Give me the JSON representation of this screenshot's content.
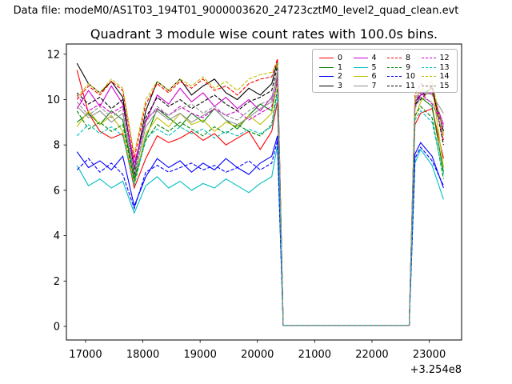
{
  "header": {
    "data_file_label": "Data file: modeM0/AS1T03_194T01_9000003620_24723cztM0_level2_quad_clean.evt"
  },
  "chart_data": {
    "type": "line",
    "title": "Quadrant 3 module wise count rates with 100.0s bins.",
    "xlabel": "",
    "ylabel": "",
    "x_offset_text": "+3.254e8",
    "xlim": [
      16665,
      23565
    ],
    "ylim": [
      -0.6,
      12.45
    ],
    "xticks": [
      17000,
      18000,
      19000,
      20000,
      21000,
      22000,
      23000
    ],
    "yticks": [
      0,
      2,
      4,
      6,
      8,
      10,
      12
    ],
    "grid": false,
    "legend_position": "upper right",
    "legend_columns": 4,
    "x": [
      16850,
      17050,
      17250,
      17450,
      17650,
      17850,
      18050,
      18250,
      18450,
      18650,
      18850,
      19050,
      19250,
      19450,
      19650,
      19850,
      20050,
      20250,
      20350,
      20450,
      20650,
      20850,
      21050,
      21250,
      21450,
      21650,
      21850,
      22050,
      22250,
      22450,
      22650,
      22750,
      22850,
      23050,
      23250
    ],
    "series": [
      {
        "name": "0",
        "color": "#ff0000",
        "style": "solid",
        "values": [
          11.3,
          9.4,
          8.6,
          8.3,
          8.5,
          6.1,
          7.4,
          8.4,
          8.1,
          8.3,
          8.6,
          8.2,
          8.5,
          8.0,
          8.3,
          8.6,
          7.8,
          8.6,
          9.9,
          0.05,
          0.05,
          0.05,
          0.05,
          0.05,
          0.05,
          0.05,
          0.05,
          0.05,
          0.05,
          0.05,
          0.05,
          8.9,
          9.4,
          9.6,
          7.4
        ]
      },
      {
        "name": "1",
        "color": "#008000",
        "style": "solid",
        "values": [
          9.0,
          9.4,
          8.9,
          9.5,
          9.1,
          6.5,
          8.3,
          9.6,
          9.2,
          8.8,
          9.4,
          9.0,
          9.6,
          9.1,
          8.7,
          9.3,
          9.8,
          9.5,
          10.9,
          0.05,
          0.05,
          0.05,
          0.05,
          0.05,
          0.05,
          0.05,
          0.05,
          0.05,
          0.05,
          0.05,
          0.05,
          9.8,
          10.1,
          9.7,
          6.8
        ]
      },
      {
        "name": "2",
        "color": "#0000ff",
        "style": "solid",
        "values": [
          7.7,
          7.0,
          7.3,
          6.9,
          7.5,
          5.3,
          6.6,
          7.4,
          7.0,
          7.3,
          6.8,
          7.2,
          6.9,
          7.4,
          7.0,
          6.7,
          7.2,
          7.5,
          8.4,
          0.05,
          0.05,
          0.05,
          0.05,
          0.05,
          0.05,
          0.05,
          0.05,
          0.05,
          0.05,
          0.05,
          0.05,
          7.6,
          8.1,
          7.5,
          6.1
        ]
      },
      {
        "name": "3",
        "color": "#000000",
        "style": "solid",
        "values": [
          11.6,
          10.7,
          10.3,
          10.8,
          10.1,
          6.9,
          9.5,
          10.8,
          10.4,
          10.9,
          10.2,
          10.6,
          10.9,
          10.3,
          10.0,
          10.5,
          10.2,
          10.7,
          11.7,
          0.05,
          0.05,
          0.05,
          0.05,
          0.05,
          0.05,
          0.05,
          0.05,
          0.05,
          0.05,
          0.05,
          0.05,
          9.9,
          10.2,
          10.5,
          8.6
        ]
      },
      {
        "name": "4",
        "color": "#cc00cc",
        "style": "solid",
        "values": [
          9.6,
          10.4,
          9.7,
          10.6,
          9.8,
          7.2,
          9.0,
          10.2,
          9.8,
          10.5,
          9.9,
          10.3,
          9.7,
          10.1,
          9.6,
          10.0,
          9.5,
          10.1,
          11.0,
          0.05,
          0.05,
          0.05,
          0.05,
          0.05,
          0.05,
          0.05,
          0.05,
          0.05,
          0.05,
          0.05,
          0.05,
          9.7,
          10.2,
          10.3,
          8.9
        ]
      },
      {
        "name": "5",
        "color": "#00bfbf",
        "style": "solid",
        "values": [
          7.1,
          6.2,
          6.5,
          6.1,
          6.4,
          5.0,
          6.2,
          6.6,
          6.1,
          6.4,
          6.0,
          6.3,
          6.1,
          6.5,
          6.2,
          5.9,
          6.3,
          6.6,
          8.0,
          0.05,
          0.05,
          0.05,
          0.05,
          0.05,
          0.05,
          0.05,
          0.05,
          0.05,
          0.05,
          0.05,
          0.05,
          7.2,
          7.8,
          7.1,
          5.6
        ]
      },
      {
        "name": "6",
        "color": "#bfbf00",
        "style": "solid",
        "values": [
          8.8,
          9.5,
          8.9,
          9.3,
          8.6,
          6.3,
          8.5,
          9.2,
          8.8,
          9.4,
          8.9,
          9.1,
          8.6,
          9.0,
          8.8,
          9.3,
          8.9,
          9.4,
          10.8,
          0.05,
          0.05,
          0.05,
          0.05,
          0.05,
          0.05,
          0.05,
          0.05,
          0.05,
          0.05,
          0.05,
          0.05,
          9.2,
          9.9,
          10.6,
          7.0
        ]
      },
      {
        "name": "7",
        "color": "#909090",
        "style": "solid",
        "values": [
          9.7,
          9.2,
          9.5,
          9.0,
          9.4,
          6.6,
          8.8,
          9.5,
          9.1,
          9.4,
          9.0,
          9.3,
          9.6,
          9.1,
          8.9,
          9.2,
          9.6,
          9.9,
          11.2,
          0.05,
          0.05,
          0.05,
          0.05,
          0.05,
          0.05,
          0.05,
          0.05,
          0.05,
          0.05,
          0.05,
          0.05,
          10.0,
          10.4,
          10.2,
          9.4
        ]
      },
      {
        "name": "8",
        "color": "#ff0000",
        "style": "dashed",
        "values": [
          10.0,
          10.6,
          10.2,
          10.8,
          10.4,
          7.4,
          9.8,
          10.7,
          10.3,
          10.8,
          10.5,
          10.9,
          10.4,
          10.6,
          10.2,
          10.7,
          10.9,
          11.0,
          11.8,
          0.05,
          0.05,
          0.05,
          0.05,
          0.05,
          0.05,
          0.05,
          0.05,
          0.05,
          0.05,
          0.05,
          0.05,
          10.2,
          10.7,
          10.5,
          8.2
        ]
      },
      {
        "name": "9",
        "color": "#008000",
        "style": "dashed",
        "values": [
          9.5,
          8.7,
          9.0,
          8.6,
          8.9,
          6.4,
          8.2,
          8.9,
          8.6,
          9.0,
          8.7,
          8.4,
          8.8,
          8.5,
          8.9,
          8.6,
          8.4,
          8.9,
          10.5,
          0.05,
          0.05,
          0.05,
          0.05,
          0.05,
          0.05,
          0.05,
          0.05,
          0.05,
          0.05,
          0.05,
          0.05,
          9.3,
          9.7,
          9.2,
          6.5
        ]
      },
      {
        "name": "10",
        "color": "#0000ff",
        "style": "dashed",
        "values": [
          6.9,
          7.4,
          6.8,
          7.2,
          6.7,
          5.2,
          6.8,
          7.1,
          6.8,
          7.0,
          7.2,
          6.9,
          7.1,
          6.8,
          7.0,
          7.3,
          6.9,
          7.2,
          8.2,
          0.05,
          0.05,
          0.05,
          0.05,
          0.05,
          0.05,
          0.05,
          0.05,
          0.05,
          0.05,
          0.05,
          0.05,
          7.4,
          7.9,
          7.3,
          6.2
        ]
      },
      {
        "name": "11",
        "color": "#000000",
        "style": "dashed",
        "values": [
          10.3,
          9.8,
          10.1,
          9.6,
          10.0,
          6.7,
          9.2,
          10.1,
          9.7,
          10.0,
          9.6,
          9.9,
          10.2,
          9.8,
          9.5,
          9.9,
          10.1,
          10.4,
          11.5,
          0.05,
          0.05,
          0.05,
          0.05,
          0.05,
          0.05,
          0.05,
          0.05,
          0.05,
          0.05,
          0.05,
          0.05,
          9.8,
          10.0,
          10.6,
          8.0
        ]
      },
      {
        "name": "12",
        "color": "#cc00cc",
        "style": "dashed",
        "values": [
          10.2,
          9.5,
          9.8,
          9.4,
          9.7,
          7.0,
          9.1,
          9.6,
          9.3,
          9.7,
          9.4,
          9.2,
          9.6,
          9.3,
          9.5,
          9.1,
          9.4,
          9.7,
          10.8,
          0.05,
          0.05,
          0.05,
          0.05,
          0.05,
          0.05,
          0.05,
          0.05,
          0.05,
          0.05,
          0.05,
          0.05,
          9.9,
          10.3,
          9.8,
          8.8
        ]
      },
      {
        "name": "13",
        "color": "#00bfbf",
        "style": "dashed",
        "values": [
          8.4,
          8.9,
          8.5,
          8.8,
          8.4,
          6.2,
          8.3,
          8.7,
          8.4,
          8.8,
          8.5,
          8.7,
          8.3,
          8.6,
          8.4,
          8.7,
          8.5,
          8.8,
          10.2,
          0.05,
          0.05,
          0.05,
          0.05,
          0.05,
          0.05,
          0.05,
          0.05,
          0.05,
          0.05,
          0.05,
          0.05,
          9.1,
          9.5,
          9.0,
          6.7
        ]
      },
      {
        "name": "14",
        "color": "#bfbf00",
        "style": "dashed",
        "values": [
          10.1,
          10.7,
          10.3,
          10.9,
          10.5,
          7.6,
          10.0,
          10.8,
          10.4,
          10.9,
          10.6,
          11.0,
          10.5,
          10.8,
          10.4,
          10.9,
          11.1,
          11.2,
          11.6,
          0.05,
          0.05,
          0.05,
          0.05,
          0.05,
          0.05,
          0.05,
          0.05,
          0.05,
          0.05,
          0.05,
          0.05,
          10.1,
          10.4,
          10.8,
          8.4
        ]
      },
      {
        "name": "15",
        "color": "#909090",
        "style": "dashed",
        "values": [
          9.9,
          9.3,
          9.7,
          9.2,
          9.6,
          6.8,
          9.0,
          9.7,
          9.3,
          9.6,
          9.8,
          9.4,
          9.7,
          9.3,
          9.1,
          9.5,
          9.8,
          10.0,
          11.3,
          0.05,
          0.05,
          0.05,
          0.05,
          0.05,
          0.05,
          0.05,
          0.05,
          0.05,
          0.05,
          0.05,
          0.05,
          9.6,
          10.1,
          9.9,
          8.5
        ]
      }
    ]
  }
}
